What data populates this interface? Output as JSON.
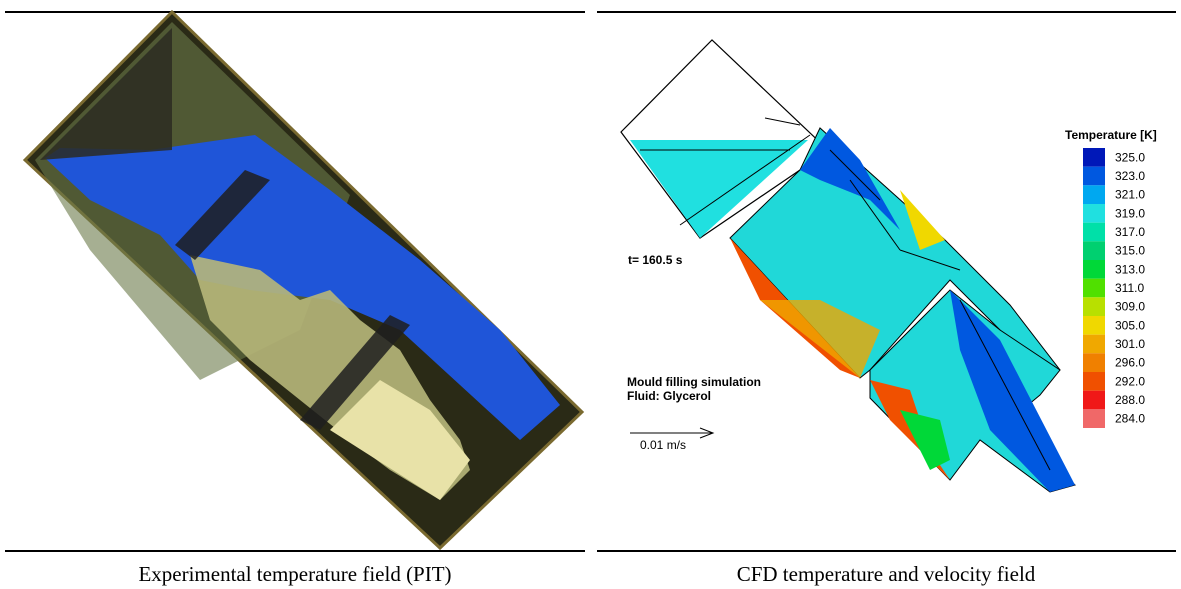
{
  "left_panel": {
    "caption": "Experimental temperature field (PIT)"
  },
  "right_panel": {
    "caption": "CFD temperature and velocity field",
    "time_label": "t= 160.5 s",
    "description": [
      "Mould filling simulation",
      "Fluid: Glycerol"
    ],
    "scale_label": "0.01 m/s",
    "legend": {
      "title": "Temperature [K]",
      "entries": [
        {
          "label": "325.0",
          "color": "#0018b8"
        },
        {
          "label": "323.0",
          "color": "#0058e0"
        },
        {
          "label": "321.0",
          "color": "#00a8f0"
        },
        {
          "label": "319.0",
          "color": "#20e0e0"
        },
        {
          "label": "317.0",
          "color": "#00e0a8"
        },
        {
          "label": "315.0",
          "color": "#00d070"
        },
        {
          "label": "313.0",
          "color": "#00d838"
        },
        {
          "label": "311.0",
          "color": "#50e000"
        },
        {
          "label": "309.0",
          "color": "#b8e000"
        },
        {
          "label": "305.0",
          "color": "#f0d800"
        },
        {
          "label": "301.0",
          "color": "#f0a800"
        },
        {
          "label": "296.0",
          "color": "#f08000"
        },
        {
          "label": "292.0",
          "color": "#f05000"
        },
        {
          "label": "288.0",
          "color": "#f01818"
        },
        {
          "label": "284.0",
          "color": "#f06868"
        }
      ]
    }
  }
}
